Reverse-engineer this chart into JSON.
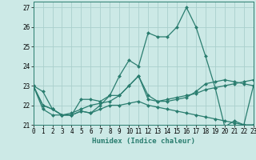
{
  "xlabel": "Humidex (Indice chaleur)",
  "ylabel": "",
  "x": [
    0,
    1,
    2,
    3,
    4,
    5,
    6,
    7,
    8,
    9,
    10,
    11,
    12,
    13,
    14,
    15,
    16,
    17,
    18,
    19,
    20,
    21,
    22,
    23
  ],
  "series": [
    [
      23.0,
      22.7,
      21.8,
      21.5,
      21.5,
      22.3,
      22.3,
      22.2,
      22.5,
      23.5,
      24.3,
      24.0,
      25.7,
      25.5,
      25.5,
      26.0,
      27.0,
      26.0,
      24.5,
      22.9,
      20.9,
      21.2,
      21.0,
      23.0
    ],
    [
      23.0,
      22.0,
      21.8,
      21.5,
      21.5,
      21.7,
      21.6,
      22.0,
      22.5,
      22.5,
      23.0,
      23.5,
      22.3,
      22.2,
      22.3,
      22.4,
      22.5,
      22.6,
      22.8,
      22.9,
      23.0,
      23.1,
      23.2,
      23.3
    ],
    [
      23.0,
      22.0,
      21.8,
      21.5,
      21.5,
      21.7,
      21.6,
      21.8,
      22.0,
      22.0,
      22.1,
      22.2,
      22.0,
      21.9,
      21.8,
      21.7,
      21.6,
      21.5,
      21.4,
      21.3,
      21.2,
      21.1,
      21.0,
      21.0
    ],
    [
      23.0,
      21.8,
      21.5,
      21.5,
      21.6,
      21.8,
      22.0,
      22.1,
      22.2,
      22.5,
      23.0,
      23.5,
      22.5,
      22.2,
      22.2,
      22.3,
      22.4,
      22.7,
      23.1,
      23.2,
      23.3,
      23.2,
      23.1,
      23.0
    ]
  ],
  "line_color": "#2a7d6f",
  "bg_color": "#cce9e6",
  "grid_color": "#aacfcc",
  "xlim": [
    0,
    23
  ],
  "ylim": [
    21.0,
    27.3
  ],
  "yticks": [
    21,
    22,
    23,
    24,
    25,
    26,
    27
  ],
  "xticks": [
    0,
    1,
    2,
    3,
    4,
    5,
    6,
    7,
    8,
    9,
    10,
    11,
    12,
    13,
    14,
    15,
    16,
    17,
    18,
    19,
    20,
    21,
    22,
    23
  ],
  "xlabel_fontsize": 6.5,
  "tick_fontsize": 5.5,
  "marker": "D",
  "markersize": 2.0,
  "linewidth": 0.9
}
